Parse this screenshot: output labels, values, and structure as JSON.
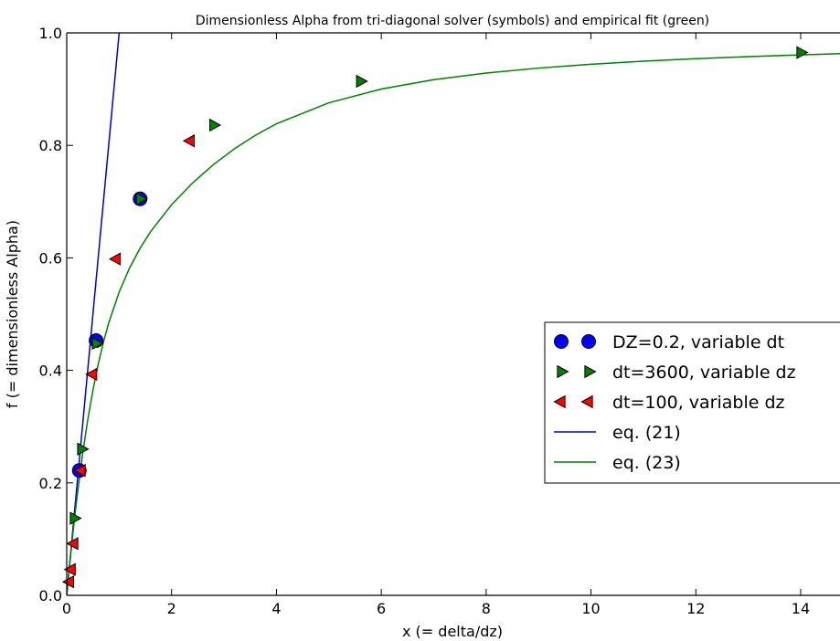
{
  "chart_data": {
    "type": "scatter",
    "title": "Dimensionless Alpha from tri-diagonal solver (symbols) and empirical fit (green)",
    "xlabel": "x (= delta/dz)",
    "ylabel": "f (= dimensionless Alpha)",
    "xlim": [
      0,
      14.75
    ],
    "ylim": [
      0,
      1.0
    ],
    "xticks": [
      "0",
      "2",
      "4",
      "6",
      "8",
      "10",
      "12",
      "14"
    ],
    "yticks": [
      "0.0",
      "0.2",
      "0.4",
      "0.6",
      "0.8",
      "1.0"
    ],
    "grid": false,
    "legend_position": "center-right",
    "series": [
      {
        "name": "DZ=0.2,  variable dt",
        "kind": "markers",
        "marker": "circle",
        "color": "#0000ff",
        "x": [
          0.24,
          0.56,
          1.4
        ],
        "y": [
          0.222,
          0.453,
          0.705
        ]
      },
      {
        "name": "dt=3600, variable dz",
        "kind": "markers",
        "marker": "triangle-right",
        "color": "#008000",
        "x": [
          0.14,
          0.28,
          0.56,
          1.4,
          2.8,
          5.6,
          14.0
        ],
        "y": [
          0.137,
          0.26,
          0.448,
          0.705,
          0.836,
          0.914,
          0.965
        ]
      },
      {
        "name": "dt=100,  variable dz",
        "kind": "markers",
        "marker": "triangle-left",
        "color": "#ff0000",
        "x": [
          0.06,
          0.09,
          0.14,
          0.28,
          0.5,
          0.95,
          2.36
        ],
        "y": [
          0.024,
          0.046,
          0.092,
          0.222,
          0.393,
          0.598,
          0.808
        ]
      },
      {
        "name": "eq. (21)",
        "kind": "line",
        "color": "#0000cc",
        "x": [
          0.0,
          1.0
        ],
        "y": [
          0.0,
          1.0
        ]
      },
      {
        "name": "eq. (23)",
        "kind": "line",
        "color": "#008000",
        "x": [
          0.0,
          0.05,
          0.1,
          0.15,
          0.2,
          0.3,
          0.4,
          0.5,
          0.6,
          0.7,
          0.8,
          1.0,
          1.2,
          1.4,
          1.6,
          2.0,
          2.4,
          2.8,
          3.2,
          3.6,
          4.0,
          5.0,
          6.0,
          7.0,
          8.0,
          9.0,
          10.0,
          11.0,
          12.0,
          13.0,
          14.0,
          14.75
        ],
        "y": [
          0.0,
          0.0487,
          0.0946,
          0.1375,
          0.1775,
          0.2494,
          0.3115,
          0.3649,
          0.4107,
          0.45,
          0.484,
          0.5392,
          0.5822,
          0.6172,
          0.6466,
          0.6945,
          0.7331,
          0.7659,
          0.794,
          0.818,
          0.8383,
          0.8757,
          0.9001,
          0.9168,
          0.9286,
          0.9374,
          0.9442,
          0.9496,
          0.9541,
          0.9578,
          0.9609,
          0.963
        ]
      }
    ]
  }
}
